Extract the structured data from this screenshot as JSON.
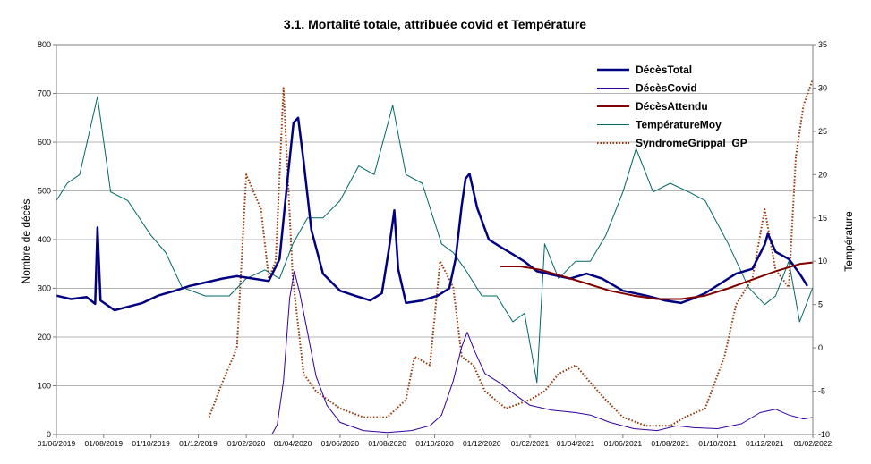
{
  "chart_data": {
    "type": "line",
    "title": "3.1. Mortalité totale, attribuée covid et Température",
    "ylabel": "Nombre de décès",
    "y2label": "Température",
    "ylim": [
      0,
      800
    ],
    "y2lim": [
      -10,
      35
    ],
    "yticks": [
      0,
      100,
      200,
      300,
      400,
      500,
      600,
      700,
      800
    ],
    "y2ticks": [
      -10,
      -5,
      0,
      5,
      10,
      15,
      20,
      25,
      30,
      35
    ],
    "xlim": [
      "2019-06-01",
      "2022-02-01"
    ],
    "xticks": [
      "01/06/2019",
      "01/08/2019",
      "01/10/2019",
      "01/12/2019",
      "01/02/2020",
      "01/04/2020",
      "01/06/2020",
      "01/08/2020",
      "01/10/2020",
      "01/12/2020",
      "01/02/2021",
      "01/04/2021",
      "01/06/2021",
      "01/08/2021",
      "01/10/2021",
      "01/12/2021",
      "01/02/2022"
    ],
    "grid": "horizontal",
    "legend_position": "top-right",
    "series": [
      {
        "name": "DécèsTotal",
        "axis": "left",
        "color": "#000080",
        "style": "solid-thick",
        "points": [
          [
            "2019-06-01",
            285
          ],
          [
            "2019-06-20",
            278
          ],
          [
            "2019-07-10",
            282
          ],
          [
            "2019-07-21",
            268
          ],
          [
            "2019-07-24",
            425
          ],
          [
            "2019-07-28",
            275
          ],
          [
            "2019-08-15",
            255
          ],
          [
            "2019-09-01",
            262
          ],
          [
            "2019-09-20",
            270
          ],
          [
            "2019-10-10",
            285
          ],
          [
            "2019-11-01",
            295
          ],
          [
            "2019-11-20",
            305
          ],
          [
            "2019-12-10",
            312
          ],
          [
            "2020-01-01",
            320
          ],
          [
            "2020-01-20",
            325
          ],
          [
            "2020-02-10",
            320
          ],
          [
            "2020-03-01",
            315
          ],
          [
            "2020-03-15",
            360
          ],
          [
            "2020-03-25",
            520
          ],
          [
            "2020-04-02",
            640
          ],
          [
            "2020-04-08",
            650
          ],
          [
            "2020-04-15",
            560
          ],
          [
            "2020-04-25",
            420
          ],
          [
            "2020-05-10",
            330
          ],
          [
            "2020-06-01",
            295
          ],
          [
            "2020-06-20",
            285
          ],
          [
            "2020-07-10",
            275
          ],
          [
            "2020-07-25",
            290
          ],
          [
            "2020-08-03",
            380
          ],
          [
            "2020-08-10",
            460
          ],
          [
            "2020-08-15",
            340
          ],
          [
            "2020-08-25",
            270
          ],
          [
            "2020-09-15",
            275
          ],
          [
            "2020-10-05",
            285
          ],
          [
            "2020-10-20",
            300
          ],
          [
            "2020-10-28",
            360
          ],
          [
            "2020-11-05",
            470
          ],
          [
            "2020-11-10",
            525
          ],
          [
            "2020-11-15",
            535
          ],
          [
            "2020-11-25",
            465
          ],
          [
            "2020-12-10",
            400
          ],
          [
            "2020-12-25",
            385
          ],
          [
            "2021-01-10",
            370
          ],
          [
            "2021-01-25",
            355
          ],
          [
            "2021-02-10",
            335
          ],
          [
            "2021-03-01",
            328
          ],
          [
            "2021-03-25",
            320
          ],
          [
            "2021-04-15",
            330
          ],
          [
            "2021-05-05",
            320
          ],
          [
            "2021-06-01",
            295
          ],
          [
            "2021-07-01",
            285
          ],
          [
            "2021-07-25",
            275
          ],
          [
            "2021-08-15",
            270
          ],
          [
            "2021-09-01",
            280
          ],
          [
            "2021-09-15",
            290
          ],
          [
            "2021-10-05",
            310
          ],
          [
            "2021-10-25",
            330
          ],
          [
            "2021-11-15",
            340
          ],
          [
            "2021-12-01",
            390
          ],
          [
            "2021-12-05",
            412
          ],
          [
            "2021-12-15",
            375
          ],
          [
            "2022-01-01",
            360
          ],
          [
            "2022-01-15",
            330
          ],
          [
            "2022-01-25",
            305
          ]
        ]
      },
      {
        "name": "DécèsCovid",
        "axis": "left",
        "color": "#330099",
        "style": "solid-thin",
        "points": [
          [
            "2020-03-05",
            0
          ],
          [
            "2020-03-12",
            20
          ],
          [
            "2020-03-20",
            110
          ],
          [
            "2020-03-28",
            280
          ],
          [
            "2020-04-03",
            335
          ],
          [
            "2020-04-10",
            290
          ],
          [
            "2020-04-20",
            210
          ],
          [
            "2020-05-01",
            120
          ],
          [
            "2020-05-15",
            60
          ],
          [
            "2020-06-01",
            25
          ],
          [
            "2020-07-01",
            8
          ],
          [
            "2020-08-01",
            4
          ],
          [
            "2020-09-01",
            8
          ],
          [
            "2020-09-25",
            18
          ],
          [
            "2020-10-10",
            40
          ],
          [
            "2020-10-25",
            110
          ],
          [
            "2020-11-05",
            180
          ],
          [
            "2020-11-12",
            210
          ],
          [
            "2020-11-22",
            170
          ],
          [
            "2020-12-05",
            125
          ],
          [
            "2020-12-25",
            105
          ],
          [
            "2021-01-10",
            85
          ],
          [
            "2021-02-01",
            60
          ],
          [
            "2021-03-01",
            50
          ],
          [
            "2021-04-01",
            45
          ],
          [
            "2021-04-20",
            40
          ],
          [
            "2021-05-15",
            25
          ],
          [
            "2021-06-15",
            12
          ],
          [
            "2021-07-15",
            8
          ],
          [
            "2021-08-10",
            18
          ],
          [
            "2021-09-01",
            14
          ],
          [
            "2021-10-01",
            12
          ],
          [
            "2021-11-01",
            22
          ],
          [
            "2021-11-25",
            45
          ],
          [
            "2021-12-15",
            52
          ],
          [
            "2022-01-01",
            40
          ],
          [
            "2022-01-20",
            32
          ],
          [
            "2022-02-01",
            35
          ]
        ]
      },
      {
        "name": "DécèsAttendu",
        "axis": "left",
        "color": "#800000",
        "style": "solid-medium",
        "points": [
          [
            "2020-12-25",
            345
          ],
          [
            "2021-01-20",
            345
          ],
          [
            "2021-02-15",
            338
          ],
          [
            "2021-03-15",
            325
          ],
          [
            "2021-04-15",
            310
          ],
          [
            "2021-05-15",
            295
          ],
          [
            "2021-06-15",
            285
          ],
          [
            "2021-07-15",
            278
          ],
          [
            "2021-08-15",
            278
          ],
          [
            "2021-09-15",
            285
          ],
          [
            "2021-10-15",
            300
          ],
          [
            "2021-11-15",
            318
          ],
          [
            "2021-12-15",
            335
          ],
          [
            "2022-01-15",
            350
          ],
          [
            "2022-02-01",
            353
          ]
        ]
      },
      {
        "name": "TempératureMoy",
        "axis": "right",
        "color": "#006666",
        "style": "solid-thin",
        "points": [
          [
            "2019-06-01",
            17
          ],
          [
            "2019-06-15",
            19
          ],
          [
            "2019-07-01",
            20
          ],
          [
            "2019-07-24",
            29
          ],
          [
            "2019-08-10",
            18
          ],
          [
            "2019-09-01",
            17
          ],
          [
            "2019-10-01",
            13
          ],
          [
            "2019-10-20",
            11
          ],
          [
            "2019-11-10",
            7
          ],
          [
            "2019-12-10",
            6
          ],
          [
            "2020-01-10",
            6
          ],
          [
            "2020-02-01",
            8
          ],
          [
            "2020-02-25",
            9
          ],
          [
            "2020-03-15",
            8
          ],
          [
            "2020-04-01",
            12
          ],
          [
            "2020-04-20",
            15
          ],
          [
            "2020-05-10",
            15
          ],
          [
            "2020-06-01",
            17
          ],
          [
            "2020-06-25",
            21
          ],
          [
            "2020-07-15",
            20
          ],
          [
            "2020-08-08",
            28
          ],
          [
            "2020-08-25",
            20
          ],
          [
            "2020-09-15",
            19
          ],
          [
            "2020-10-10",
            12
          ],
          [
            "2020-10-25",
            11
          ],
          [
            "2020-11-10",
            9
          ],
          [
            "2020-12-01",
            6
          ],
          [
            "2020-12-20",
            6
          ],
          [
            "2021-01-10",
            3
          ],
          [
            "2021-01-25",
            4
          ],
          [
            "2021-02-10",
            -4
          ],
          [
            "2021-02-20",
            12
          ],
          [
            "2021-03-10",
            8
          ],
          [
            "2021-04-01",
            10
          ],
          [
            "2021-04-20",
            10
          ],
          [
            "2021-05-10",
            13
          ],
          [
            "2021-06-01",
            18
          ],
          [
            "2021-06-18",
            23
          ],
          [
            "2021-07-10",
            18
          ],
          [
            "2021-08-01",
            19
          ],
          [
            "2021-08-25",
            18
          ],
          [
            "2021-09-15",
            17
          ],
          [
            "2021-10-15",
            12
          ],
          [
            "2021-11-10",
            7
          ],
          [
            "2021-12-01",
            5
          ],
          [
            "2021-12-15",
            6
          ],
          [
            "2022-01-01",
            10
          ],
          [
            "2022-01-15",
            3
          ],
          [
            "2022-02-01",
            7
          ]
        ]
      },
      {
        "name": "SyndromeGrippal_GP",
        "axis": "right",
        "color": "#993300",
        "style": "dotted",
        "points": [
          [
            "2019-12-15",
            -8
          ],
          [
            "2020-01-01",
            -4
          ],
          [
            "2020-01-20",
            0
          ],
          [
            "2020-02-01",
            20
          ],
          [
            "2020-02-20",
            16
          ],
          [
            "2020-03-01",
            8
          ],
          [
            "2020-03-10",
            10
          ],
          [
            "2020-03-20",
            30
          ],
          [
            "2020-04-01",
            8
          ],
          [
            "2020-04-15",
            -3
          ],
          [
            "2020-05-01",
            -5
          ],
          [
            "2020-06-01",
            -7
          ],
          [
            "2020-07-01",
            -8
          ],
          [
            "2020-08-01",
            -8
          ],
          [
            "2020-08-25",
            -6
          ],
          [
            "2020-09-05",
            -1
          ],
          [
            "2020-09-25",
            -2
          ],
          [
            "2020-10-08",
            10
          ],
          [
            "2020-10-25",
            7
          ],
          [
            "2020-11-05",
            -1
          ],
          [
            "2020-11-20",
            -2
          ],
          [
            "2020-12-05",
            -5
          ],
          [
            "2021-01-01",
            -7
          ],
          [
            "2021-02-01",
            -6
          ],
          [
            "2021-02-20",
            -5
          ],
          [
            "2021-03-10",
            -3
          ],
          [
            "2021-04-01",
            -2
          ],
          [
            "2021-04-20",
            -4
          ],
          [
            "2021-05-10",
            -6
          ],
          [
            "2021-06-01",
            -8
          ],
          [
            "2021-07-01",
            -9
          ],
          [
            "2021-08-01",
            -9
          ],
          [
            "2021-08-20",
            -8
          ],
          [
            "2021-09-15",
            -7
          ],
          [
            "2021-10-10",
            -1
          ],
          [
            "2021-10-25",
            5
          ],
          [
            "2021-11-15",
            8
          ],
          [
            "2021-12-01",
            16
          ],
          [
            "2021-12-15",
            9
          ],
          [
            "2022-01-01",
            7
          ],
          [
            "2022-01-10",
            22
          ],
          [
            "2022-01-20",
            28
          ],
          [
            "2022-02-01",
            31
          ]
        ]
      }
    ]
  }
}
